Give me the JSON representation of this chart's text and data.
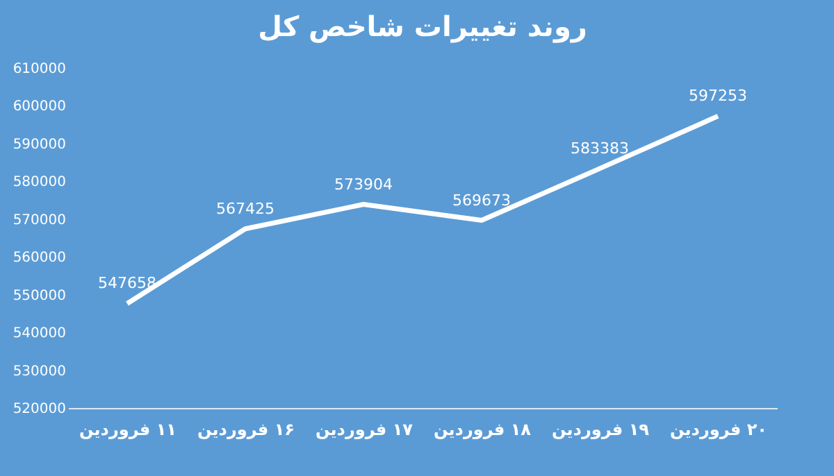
{
  "chart_data": {
    "type": "line",
    "title": "روند تغییرات شاخص کل",
    "categories": [
      "۱۱ فروردین",
      "۱۶ فروردین",
      "۱۷ فروردین",
      "۱۸ فروردین",
      "۱۹ فروردین",
      "۲۰ فروردین"
    ],
    "series": [
      {
        "color": "#ffffff",
        "values": [
          547658,
          567425,
          573904,
          569673,
          583383,
          597253
        ]
      }
    ],
    "ylim": [
      520000,
      610000
    ],
    "yticks": [
      520000,
      530000,
      540000,
      550000,
      560000,
      570000,
      580000,
      590000,
      600000,
      610000
    ],
    "data_labels": true,
    "grid": false,
    "legend": false,
    "marker": "none",
    "line_style": "solid"
  }
}
